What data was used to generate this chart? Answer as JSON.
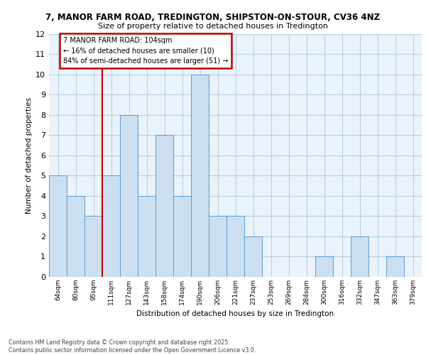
{
  "title_line1": "7, MANOR FARM ROAD, TREDINGTON, SHIPSTON-ON-STOUR, CV36 4NZ",
  "title_line2": "Size of property relative to detached houses in Tredington",
  "xlabel": "Distribution of detached houses by size in Tredington",
  "ylabel": "Number of detached properties",
  "footer_line1": "Contains HM Land Registry data © Crown copyright and database right 2025.",
  "footer_line2": "Contains public sector information licensed under the Open Government Licence v3.0.",
  "categories": [
    "64sqm",
    "80sqm",
    "95sqm",
    "111sqm",
    "127sqm",
    "143sqm",
    "158sqm",
    "174sqm",
    "190sqm",
    "206sqm",
    "221sqm",
    "237sqm",
    "253sqm",
    "269sqm",
    "284sqm",
    "300sqm",
    "316sqm",
    "332sqm",
    "347sqm",
    "363sqm",
    "379sqm"
  ],
  "values": [
    5,
    4,
    3,
    5,
    8,
    4,
    7,
    4,
    10,
    3,
    3,
    2,
    0,
    0,
    0,
    1,
    0,
    2,
    0,
    1,
    0
  ],
  "bar_color": "#ccdff0",
  "bar_edge_color": "#5b9bd5",
  "reference_line_x": 2.5,
  "reference_line_color": "#c00000",
  "annotation_text": "7 MANOR FARM ROAD: 104sqm\n← 16% of detached houses are smaller (10)\n84% of semi-detached houses are larger (51) →",
  "annotation_box_color": "#ffffff",
  "annotation_box_edge_color": "#c00000",
  "ylim": [
    0,
    12
  ],
  "yticks": [
    0,
    1,
    2,
    3,
    4,
    5,
    6,
    7,
    8,
    9,
    10,
    11,
    12
  ],
  "grid_color": "#b8cfe0",
  "background_color": "#eaf3fb",
  "fig_bg": "#ffffff"
}
